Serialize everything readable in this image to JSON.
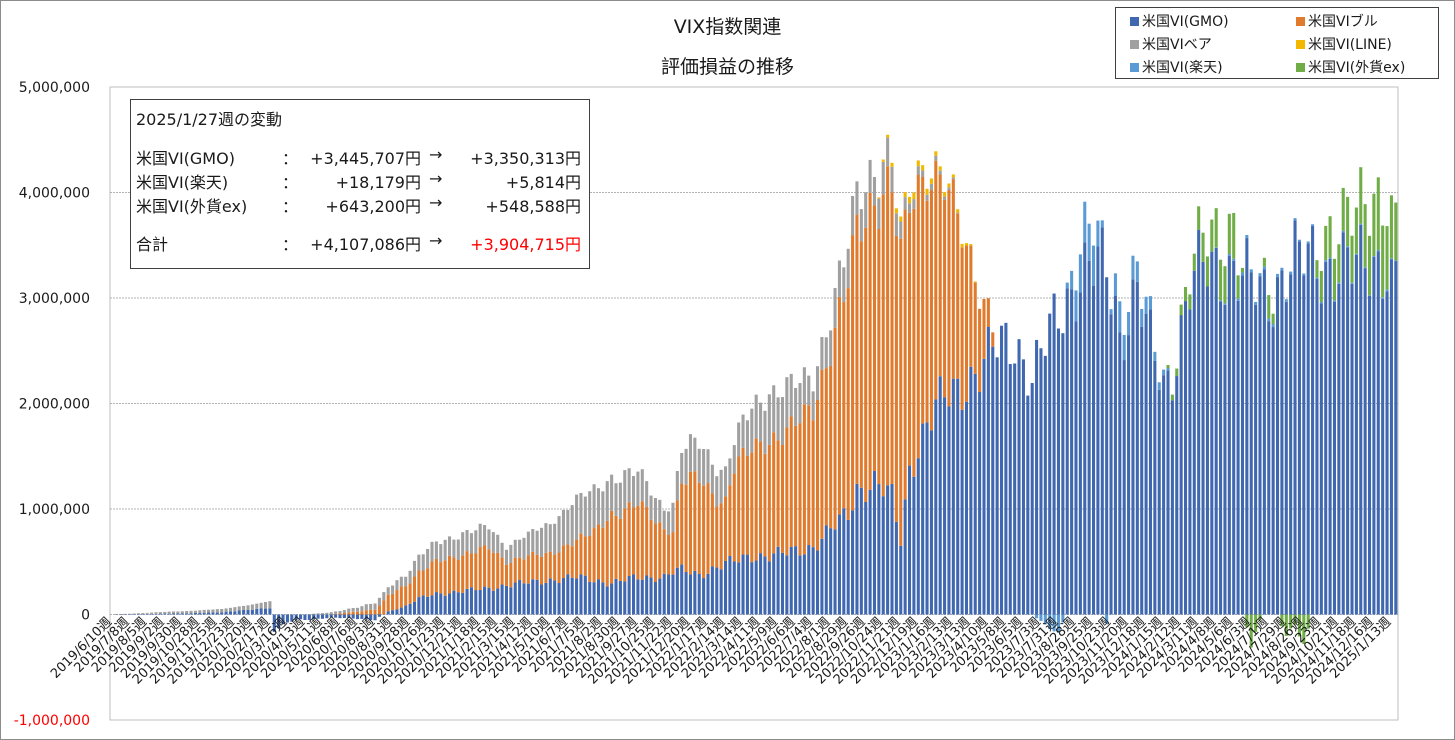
{
  "title": {
    "line1": "VIX指数関連",
    "line2": "評価損益の推移"
  },
  "legend": [
    {
      "label": "米国VI(GMO)",
      "color": "#4068b0"
    },
    {
      "label": "米国VIブル",
      "color": "#e07b2e"
    },
    {
      "label": "米国VIベア",
      "color": "#a0a0a0"
    },
    {
      "label": "米国VI(LINE)",
      "color": "#f2b800"
    },
    {
      "label": "米国VI(楽天)",
      "color": "#5b9bd5"
    },
    {
      "label": "米国VI(外貨ex)",
      "color": "#70ad47"
    }
  ],
  "infobox": {
    "heading": "2025/1/27週の変動",
    "rows": [
      {
        "name": "米国VI(GMO)",
        "sep": "：",
        "prev": "+3,445,707円",
        "arrow": "→",
        "curr": "+3,350,313円"
      },
      {
        "name": "米国VI(楽天)",
        "sep": "：",
        "prev": "+18,179円",
        "arrow": "→",
        "curr": "+5,814円"
      },
      {
        "name": "米国VI(外貨ex)",
        "sep": "：",
        "prev": "+643,200円",
        "arrow": "→",
        "curr": "+548,588円"
      }
    ],
    "total": {
      "name": "合計",
      "sep": "：",
      "prev": "+4,107,086円",
      "arrow": "→",
      "curr": "+3,904,715円",
      "curr_color": "#ff0000"
    }
  },
  "chart_data": {
    "type": "bar",
    "stacked": true,
    "title": "VIX指数関連 評価損益の推移",
    "xlabel": "",
    "ylabel": "",
    "ylim": [
      -1000000,
      5000000
    ],
    "yticks": [
      "5,000,000",
      "4,000,000",
      "3,000,000",
      "2,000,000",
      "1,000,000",
      "0",
      "-1,000,000"
    ],
    "ytick_values": [
      5000000,
      4000000,
      3000000,
      2000000,
      1000000,
      0,
      -1000000
    ],
    "negative_tick_color": "#ff0000",
    "grid": true,
    "legend_position": "top-right",
    "num_weeks": 294,
    "x_tick_labels": [
      "2019/6/10週",
      "2019/7/8週",
      "2019/8/5週",
      "2019/9/2週",
      "2019/9/30週",
      "2019/10/28週",
      "2019/11/25週",
      "2019/12/23週",
      "2020/1/20週",
      "2020/2/17週",
      "2020/3/16週",
      "2020/4/13週",
      "2020/5/11週",
      "2020/6/8週",
      "2020/7/6週",
      "2020/8/3週",
      "2020/8/31週",
      "2020/9/28週",
      "2020/10/26週",
      "2020/11/23週",
      "2020/12/21週",
      "2021/1/18週",
      "2021/2/15週",
      "2021/3/15週",
      "2021/4/12週",
      "2021/5/10週",
      "2021/6/7週",
      "2021/7/5週",
      "2021/8/2週",
      "2021/8/30週",
      "2021/9/27週",
      "2021/10/25週",
      "2021/11/22週",
      "2021/12/20週",
      "2022/1/17週",
      "2022/2/14週",
      "2022/3/14週",
      "2022/4/11週",
      "2022/5/9週",
      "2022/6/6週",
      "2022/7/4週",
      "2022/8/1週",
      "2022/8/29週",
      "2022/9/26週",
      "2022/10/24週",
      "2022/11/21週",
      "2022/12/19週",
      "2023/1/16週",
      "2023/2/13週",
      "2023/3/13週",
      "2023/4/10週",
      "2023/5/8週",
      "2023/6/5週",
      "2023/7/3週",
      "2023/7/31週",
      "2023/8/28週",
      "2023/9/25週",
      "2023/10/23週",
      "2023/11/20週",
      "2023/12/18週",
      "2024/1/15週",
      "2024/2/12週",
      "2024/3/11週",
      "2024/4/8週",
      "2024/5/6週",
      "2024/6/3週",
      "2024/7/1週",
      "2024/7/29週",
      "2024/8/26週",
      "2024/9/23週",
      "2024/10/21週",
      "2024/11/18週",
      "2024/12/16週",
      "2025/1/13週"
    ],
    "x_tick_interval_weeks": 4,
    "anchors": {
      "weeks": [
        0,
        15,
        25,
        29,
        33,
        36,
        37,
        40,
        42,
        44,
        50,
        56,
        60,
        63,
        67,
        70,
        74,
        80,
        86,
        90,
        95,
        100,
        106,
        110,
        114,
        120,
        126,
        128,
        130,
        134,
        138,
        140,
        142,
        146,
        150,
        154,
        160,
        168,
        170,
        174,
        178,
        180,
        182,
        186,
        190,
        194,
        198,
        200,
        202,
        206,
        210,
        216,
        220,
        224,
        227,
        229,
        230,
        232,
        234,
        236,
        238,
        240,
        242,
        246,
        250,
        256,
        260,
        264,
        268,
        270,
        272,
        276,
        280,
        284,
        288,
        291,
        293
      ],
      "gmo": [
        0,
        10000,
        20000,
        40000,
        50000,
        60000,
        -150000,
        -80000,
        -50000,
        -50000,
        -30000,
        -40000,
        -50000,
        30000,
        80000,
        150000,
        200000,
        220000,
        250000,
        280000,
        300000,
        330000,
        350000,
        330000,
        300000,
        350000,
        360000,
        400000,
        420000,
        380000,
        450000,
        480000,
        500000,
        560000,
        560000,
        580000,
        650000,
        950000,
        1200000,
        1250000,
        1100000,
        700000,
        1400000,
        1800000,
        2050000,
        2200000,
        2300000,
        2400000,
        2550000,
        2650000,
        2200000,
        2900000,
        3150000,
        3250000,
        3300000,
        2950000,
        2650000,
        2850000,
        3050000,
        2700000,
        2400000,
        2200000,
        2300000,
        3100000,
        3300000,
        3300000,
        3100000,
        3000000,
        3300000,
        3350000,
        3350000,
        3300000,
        3350000,
        3250000,
        3350000,
        3380000,
        3350313
      ],
      "bull": [
        0,
        0,
        0,
        0,
        0,
        0,
        0,
        0,
        0,
        0,
        0,
        30000,
        50000,
        150000,
        200000,
        250000,
        300000,
        350000,
        380000,
        220000,
        250000,
        250000,
        350000,
        450000,
        650000,
        700000,
        450000,
        400000,
        850000,
        900000,
        650000,
        600000,
        900000,
        1000000,
        1100000,
        1150000,
        1300000,
        2200000,
        2400000,
        2700000,
        3000000,
        2600000,
        2500000,
        2400000,
        2000000,
        1500000,
        800000,
        300000,
        0,
        0,
        0,
        0,
        0,
        0,
        0,
        0,
        0,
        0,
        0,
        0,
        0,
        0,
        0,
        0,
        0,
        0,
        0,
        0,
        0,
        0,
        0,
        0,
        0,
        0,
        0,
        0,
        0
      ],
      "bear": [
        0,
        20000,
        30000,
        40000,
        50000,
        60000,
        0,
        0,
        0,
        0,
        20000,
        40000,
        60000,
        80000,
        100000,
        150000,
        180000,
        200000,
        200000,
        150000,
        200000,
        300000,
        380000,
        400000,
        350000,
        300000,
        200000,
        250000,
        300000,
        350000,
        300000,
        280000,
        250000,
        400000,
        450000,
        420000,
        300000,
        350000,
        350000,
        300000,
        250000,
        150000,
        100000,
        60000,
        30000,
        0,
        0,
        0,
        0,
        0,
        0,
        0,
        0,
        0,
        0,
        0,
        0,
        0,
        0,
        0,
        0,
        0,
        0,
        0,
        0,
        0,
        0,
        0,
        0,
        0,
        0,
        0,
        0,
        0,
        0,
        0,
        0
      ],
      "line": [
        0,
        0,
        0,
        0,
        0,
        0,
        0,
        0,
        0,
        0,
        0,
        0,
        0,
        0,
        0,
        0,
        0,
        0,
        0,
        0,
        0,
        0,
        0,
        0,
        0,
        0,
        0,
        0,
        0,
        0,
        0,
        0,
        0,
        0,
        0,
        0,
        0,
        0,
        0,
        0,
        40000,
        50000,
        60000,
        50000,
        40000,
        30000,
        0,
        0,
        0,
        0,
        0,
        0,
        0,
        0,
        0,
        0,
        0,
        0,
        0,
        0,
        0,
        0,
        0,
        0,
        0,
        0,
        0,
        0,
        0,
        0,
        0,
        0,
        0,
        0,
        0,
        0,
        0
      ],
      "rakuten": [
        0,
        0,
        0,
        0,
        0,
        0,
        0,
        0,
        0,
        0,
        0,
        0,
        0,
        0,
        0,
        0,
        0,
        0,
        0,
        0,
        0,
        0,
        0,
        0,
        0,
        0,
        0,
        0,
        0,
        0,
        0,
        0,
        0,
        0,
        0,
        0,
        0,
        0,
        0,
        0,
        0,
        0,
        0,
        0,
        0,
        0,
        0,
        0,
        0,
        0,
        0,
        -200000,
        300000,
        400000,
        -100000,
        200000,
        300000,
        200000,
        200000,
        150000,
        100000,
        50000,
        0,
        0,
        0,
        20000,
        30000,
        30000,
        25000,
        20000,
        18000,
        15000,
        12000,
        10000,
        8000,
        18179,
        5814
      ],
      "ex": [
        0,
        0,
        0,
        0,
        0,
        0,
        0,
        0,
        0,
        0,
        0,
        0,
        0,
        0,
        0,
        0,
        0,
        0,
        0,
        0,
        0,
        0,
        0,
        0,
        0,
        0,
        0,
        0,
        0,
        0,
        0,
        0,
        0,
        0,
        0,
        0,
        0,
        0,
        0,
        0,
        0,
        0,
        0,
        0,
        0,
        0,
        0,
        0,
        0,
        0,
        0,
        0,
        0,
        0,
        0,
        0,
        0,
        0,
        0,
        0,
        0,
        0,
        50000,
        150000,
        300000,
        400000,
        -300000,
        200000,
        -200000,
        -100000,
        -300000,
        300000,
        400000,
        500000,
        600000,
        643200,
        548588
      ]
    }
  }
}
